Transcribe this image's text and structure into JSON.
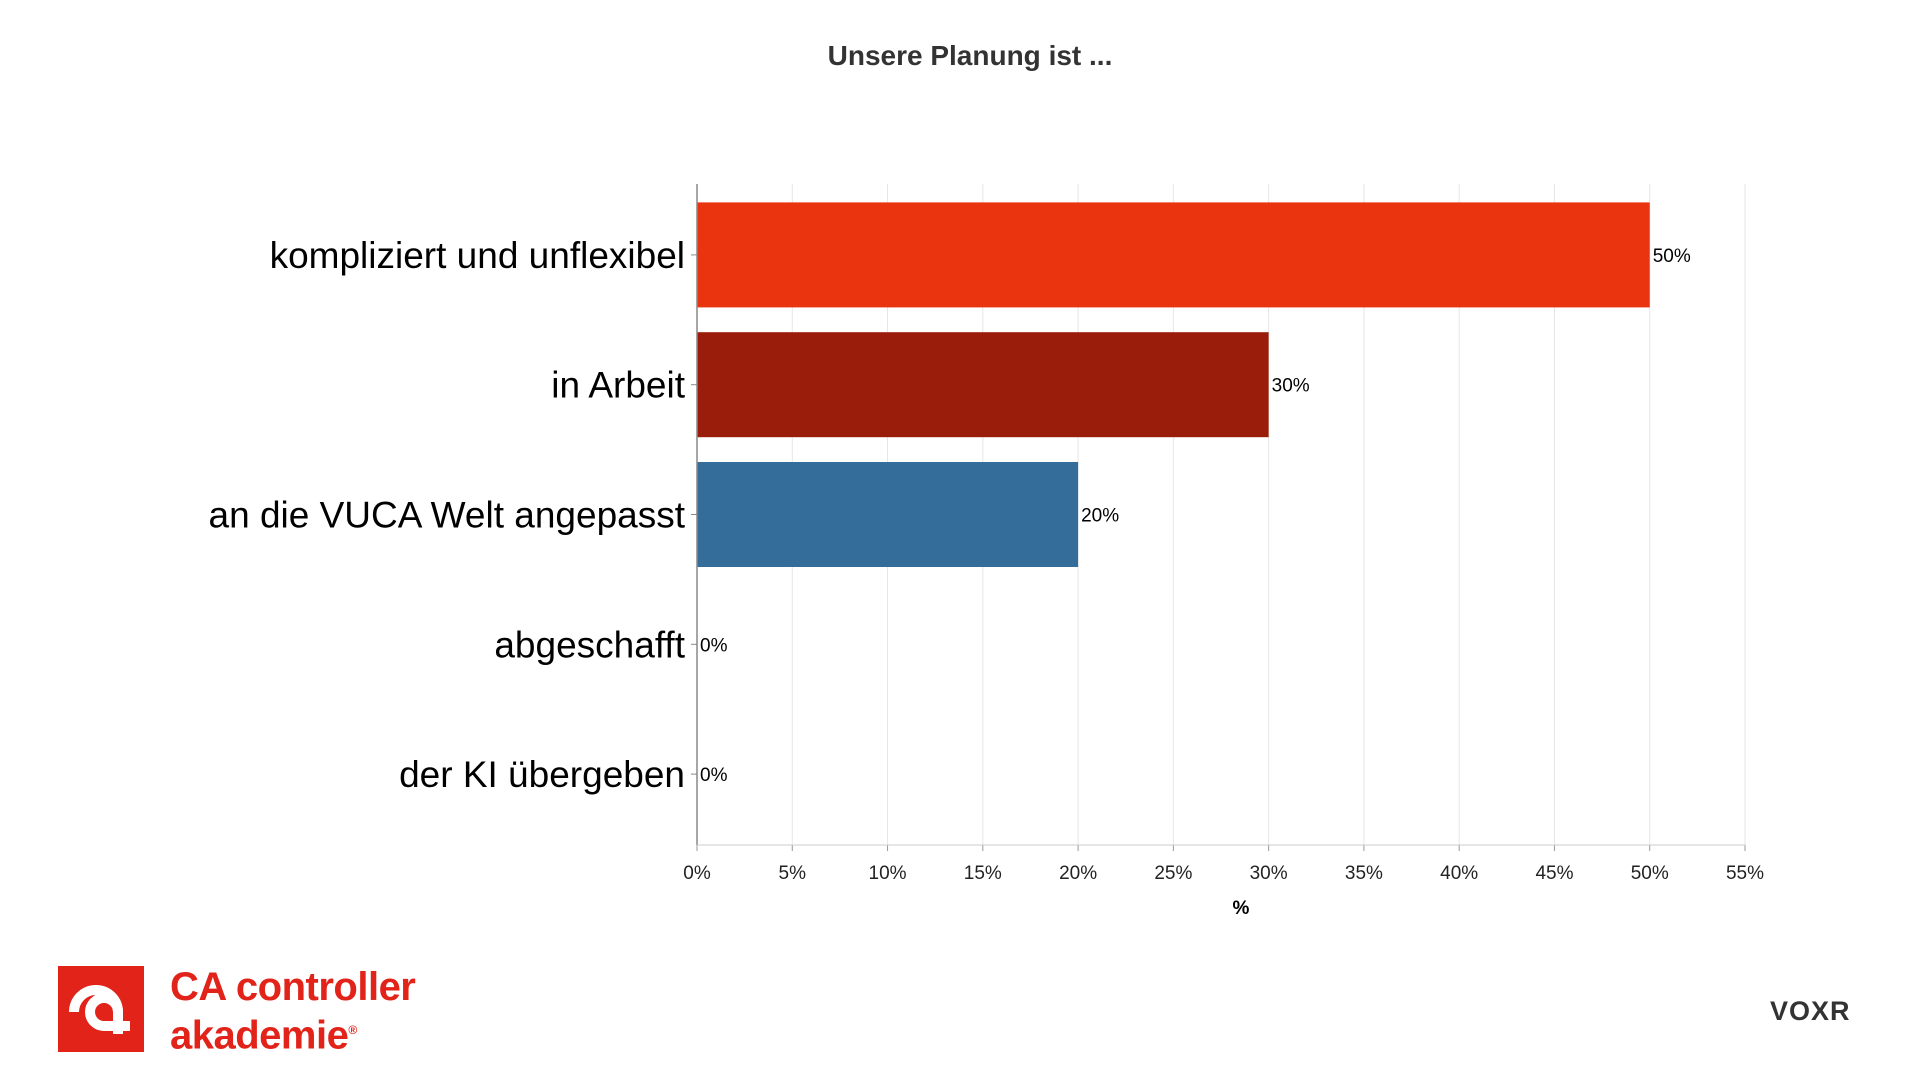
{
  "chart_data": {
    "type": "bar",
    "orientation": "horizontal",
    "title": "Unsere Planung ist ...",
    "xlabel": "%",
    "ylabel": "",
    "categories": [
      "kompliziert und unflexibel",
      "in Arbeit",
      "an die VUCA Welt angepasst",
      "abgeschafft",
      "der KI übergeben"
    ],
    "values": [
      50,
      30,
      20,
      0,
      0
    ],
    "data_labels": [
      "50%",
      "30%",
      "20%",
      "0%",
      "0%"
    ],
    "colors": [
      "#ea330f",
      "#9a1c0b",
      "#346d99",
      "#346d99",
      "#346d99"
    ],
    "xlim": [
      0,
      55
    ],
    "x_ticks": [
      0,
      5,
      10,
      15,
      20,
      25,
      30,
      35,
      40,
      45,
      50,
      55
    ],
    "x_tick_labels": [
      "0%",
      "5%",
      "10%",
      "15%",
      "20%",
      "25%",
      "30%",
      "35%",
      "40%",
      "45%",
      "50%",
      "55%"
    ],
    "grid": "vertical",
    "legend": "none"
  },
  "branding": {
    "left_logo_line1": "CA controller",
    "left_logo_line2": "akademie",
    "left_logo_mark": "®",
    "left_logo_color": "#e2231a",
    "right_logo": "VOXR"
  }
}
